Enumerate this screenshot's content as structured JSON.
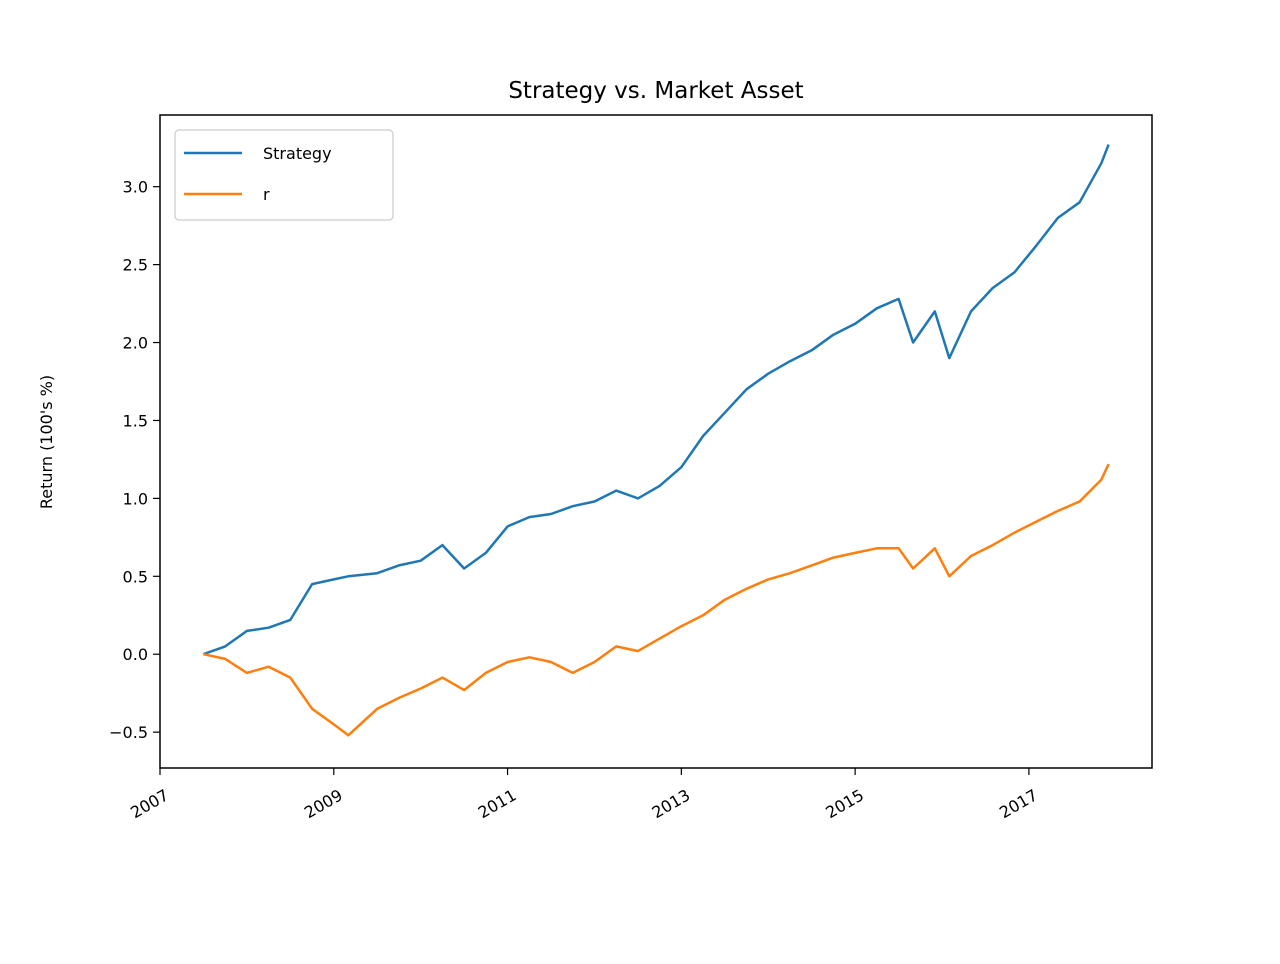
{
  "chart_data": {
    "type": "line",
    "title": "Strategy vs. Market Asset",
    "xlabel": "",
    "ylabel": "Return (100's %)",
    "xlim": [
      "2007-01-01",
      "2018-06-01"
    ],
    "ylim": [
      -0.73,
      3.46
    ],
    "x_ticks": [
      "2007",
      "2009",
      "2011",
      "2013",
      "2015",
      "2017"
    ],
    "y_ticks": [
      "−0.5",
      "0.0",
      "0.5",
      "1.0",
      "1.5",
      "2.0",
      "2.5",
      "3.0"
    ],
    "grid": false,
    "legend_position": "top-left",
    "x": [
      "2007-07",
      "2007-10",
      "2008-01",
      "2008-04",
      "2008-07",
      "2008-10",
      "2009-01",
      "2009-03",
      "2009-07",
      "2009-10",
      "2010-01",
      "2010-04",
      "2010-07",
      "2010-10",
      "2011-01",
      "2011-04",
      "2011-07",
      "2011-10",
      "2012-01",
      "2012-04",
      "2012-07",
      "2012-10",
      "2013-01",
      "2013-04",
      "2013-07",
      "2013-10",
      "2014-01",
      "2014-04",
      "2014-07",
      "2014-10",
      "2015-01",
      "2015-04",
      "2015-07",
      "2015-09",
      "2015-12",
      "2016-02",
      "2016-05",
      "2016-08",
      "2016-11",
      "2017-02",
      "2017-05",
      "2017-08",
      "2017-11",
      "2017-12"
    ],
    "series": [
      {
        "name": "Strategy",
        "color": "#1f77b4",
        "values": [
          0.0,
          0.05,
          0.15,
          0.17,
          0.22,
          0.45,
          0.48,
          0.5,
          0.52,
          0.57,
          0.6,
          0.7,
          0.55,
          0.65,
          0.82,
          0.88,
          0.9,
          0.95,
          0.98,
          1.05,
          1.0,
          1.08,
          1.2,
          1.4,
          1.55,
          1.7,
          1.8,
          1.88,
          1.95,
          2.05,
          2.12,
          2.22,
          2.28,
          2.0,
          2.2,
          1.9,
          2.2,
          2.35,
          2.45,
          2.62,
          2.8,
          2.9,
          3.15,
          3.27
        ]
      },
      {
        "name": "r",
        "color": "#ff7f0e",
        "values": [
          0.0,
          -0.03,
          -0.12,
          -0.08,
          -0.15,
          -0.35,
          -0.45,
          -0.52,
          -0.35,
          -0.28,
          -0.22,
          -0.15,
          -0.23,
          -0.12,
          -0.05,
          -0.02,
          -0.05,
          -0.12,
          -0.05,
          0.05,
          0.02,
          0.1,
          0.18,
          0.25,
          0.35,
          0.42,
          0.48,
          0.52,
          0.57,
          0.62,
          0.65,
          0.68,
          0.68,
          0.55,
          0.68,
          0.5,
          0.63,
          0.7,
          0.78,
          0.85,
          0.92,
          0.98,
          1.12,
          1.22
        ]
      }
    ]
  }
}
